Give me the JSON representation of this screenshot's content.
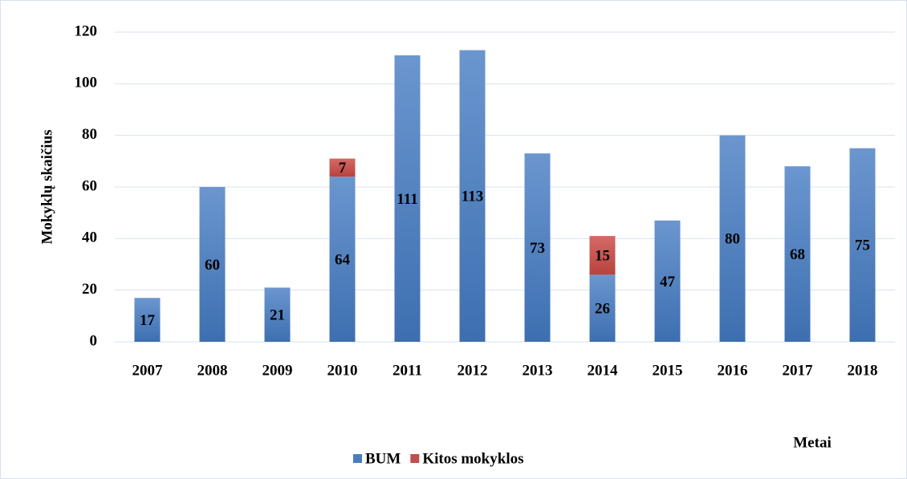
{
  "chart_data": {
    "type": "stacked_bar",
    "y_label": "Mokyklų skaičius",
    "x_label": "Metai",
    "categories": [
      "2007",
      "2008",
      "2009",
      "2010",
      "2011",
      "2012",
      "2013",
      "2014",
      "2015",
      "2016",
      "2017",
      "2018"
    ],
    "series": [
      {
        "name": "BUM",
        "color": "#4a7ebb",
        "values": [
          17,
          60,
          21,
          64,
          111,
          113,
          73,
          26,
          47,
          80,
          68,
          75
        ]
      },
      {
        "name": "Kitos mokyklos",
        "color": "#c0504d",
        "values": [
          null,
          null,
          null,
          7,
          null,
          null,
          null,
          15,
          null,
          null,
          null,
          null
        ]
      }
    ],
    "ylim": [
      0,
      120
    ],
    "yticks": [
      0,
      20,
      40,
      60,
      80,
      100,
      120
    ],
    "grid": true,
    "legend": "bottom"
  }
}
